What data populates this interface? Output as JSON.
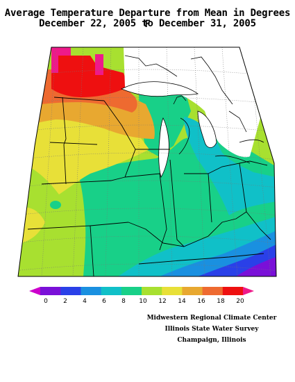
{
  "title": {
    "line1": "Average Temperature Departure from Mean in Degrees F",
    "line2": "December 22, 2005 to December 31, 2005"
  },
  "legend": {
    "tick_labels": [
      "0",
      "2",
      "4",
      "6",
      "8",
      "10",
      "12",
      "14",
      "16",
      "18",
      "20"
    ],
    "bins": [
      {
        "range": "<0",
        "color": "#cc00cc"
      },
      {
        "range": "0-2",
        "color": "#7a10d8"
      },
      {
        "range": "2-4",
        "color": "#2a40e8"
      },
      {
        "range": "4-6",
        "color": "#1a90e0"
      },
      {
        "range": "6-8",
        "color": "#10c0c8"
      },
      {
        "range": "8-10",
        "color": "#18d088"
      },
      {
        "range": "10-12",
        "color": "#a8e030"
      },
      {
        "range": "12-14",
        "color": "#e8e038"
      },
      {
        "range": "14-16",
        "color": "#e8a830"
      },
      {
        "range": "16-18",
        "color": "#ee6a30"
      },
      {
        "range": "18-20",
        "color": "#ee1010"
      },
      {
        "range": ">20",
        "color": "#ee1a8a"
      }
    ]
  },
  "map": {
    "border_color": "#000000",
    "grid_color": "#777777"
  },
  "credits": {
    "line1": "Midwestern Regional Climate Center",
    "line2": "Illinois State Water Survey",
    "line3": "Champaign, Illinois"
  }
}
